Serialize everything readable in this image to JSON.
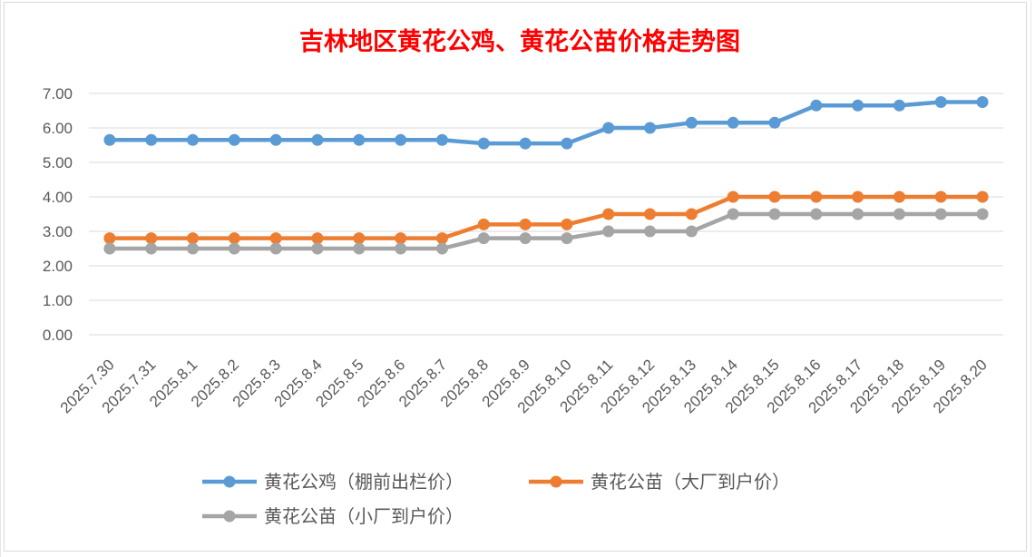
{
  "chart_data": {
    "type": "line",
    "title": "吉林地区黄花公鸡、黄花公苗价格走势图",
    "title_color": "#ff0000",
    "categories": [
      "2025.7.30",
      "2025.7.31",
      "2025.8.1",
      "2025.8.2",
      "2025.8.3",
      "2025.8.4",
      "2025.8.5",
      "2025.8.6",
      "2025.8.7",
      "2025.8.8",
      "2025.8.9",
      "2025.8.10",
      "2025.8.11",
      "2025.8.12",
      "2025.8.13",
      "2025.8.14",
      "2025.8.15",
      "2025.8.16",
      "2025.8.17",
      "2025.8.18",
      "2025.8.19",
      "2025.8.20"
    ],
    "series": [
      {
        "name": "黄花公鸡（棚前出栏价）",
        "color": "#5b9bd5",
        "values": [
          5.65,
          5.65,
          5.65,
          5.65,
          5.65,
          5.65,
          5.65,
          5.65,
          5.65,
          5.55,
          5.55,
          5.55,
          6.0,
          6.0,
          6.15,
          6.15,
          6.15,
          6.65,
          6.65,
          6.65,
          6.75,
          6.75
        ]
      },
      {
        "name": "黄花公苗（大厂到户价）",
        "color": "#ed7d31",
        "values": [
          2.8,
          2.8,
          2.8,
          2.8,
          2.8,
          2.8,
          2.8,
          2.8,
          2.8,
          3.2,
          3.2,
          3.2,
          3.5,
          3.5,
          3.5,
          4.0,
          4.0,
          4.0,
          4.0,
          4.0,
          4.0,
          4.0
        ]
      },
      {
        "name": "黄花公苗（小厂到户价）",
        "color": "#a5a5a5",
        "values": [
          2.5,
          2.5,
          2.5,
          2.5,
          2.5,
          2.5,
          2.5,
          2.5,
          2.5,
          2.8,
          2.8,
          2.8,
          3.0,
          3.0,
          3.0,
          3.5,
          3.5,
          3.5,
          3.5,
          3.5,
          3.5,
          3.5
        ]
      }
    ],
    "ylim": [
      0,
      7
    ],
    "yticks": [
      "0.00",
      "1.00",
      "2.00",
      "3.00",
      "4.00",
      "5.00",
      "6.00",
      "7.00"
    ],
    "grid": true,
    "legend_position": "bottom"
  }
}
